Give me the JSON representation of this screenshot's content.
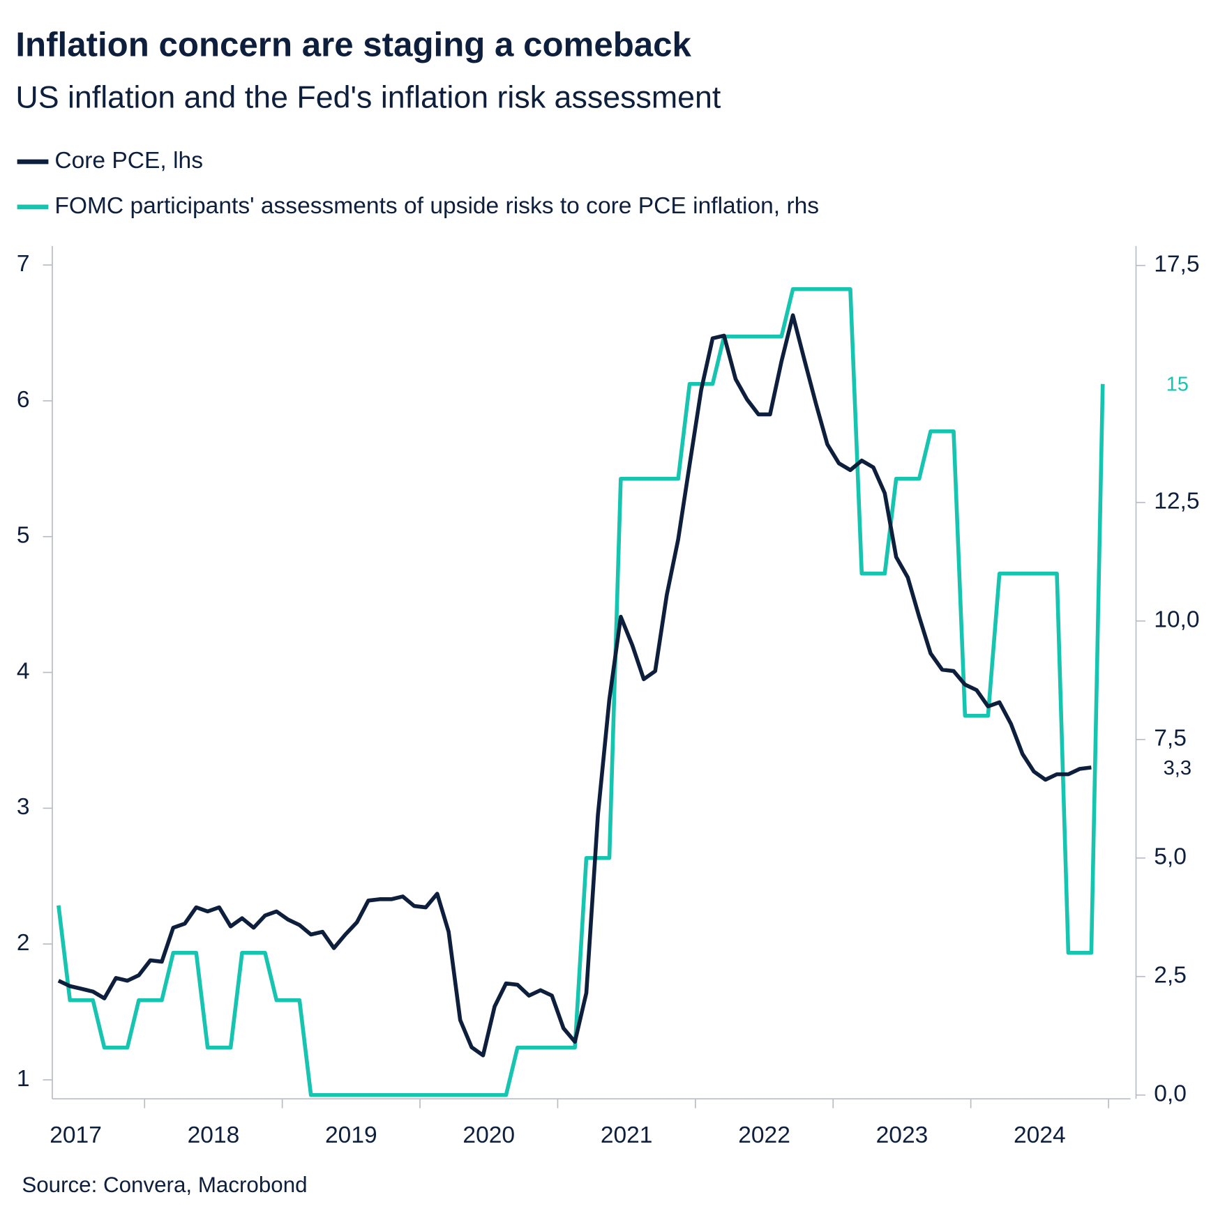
{
  "chart_data": {
    "type": "line",
    "title": "Inflation concern are staging a comeback",
    "subtitle": "US inflation and the Fed's inflation risk assessment",
    "source": "Source: Convera, Macrobond",
    "x": [
      2017.375,
      2017.458,
      2017.542,
      2017.625,
      2017.708,
      2017.792,
      2017.875,
      2017.958,
      2018.042,
      2018.125,
      2018.208,
      2018.292,
      2018.375,
      2018.458,
      2018.542,
      2018.625,
      2018.708,
      2018.792,
      2018.875,
      2018.958,
      2019.042,
      2019.125,
      2019.208,
      2019.292,
      2019.375,
      2019.458,
      2019.542,
      2019.625,
      2019.708,
      2019.792,
      2019.875,
      2019.958,
      2020.042,
      2020.125,
      2020.208,
      2020.292,
      2020.375,
      2020.458,
      2020.542,
      2020.625,
      2020.708,
      2020.792,
      2020.875,
      2020.958,
      2021.042,
      2021.125,
      2021.208,
      2021.292,
      2021.375,
      2021.458,
      2021.542,
      2021.625,
      2021.708,
      2021.792,
      2021.875,
      2021.958,
      2022.042,
      2022.125,
      2022.208,
      2022.292,
      2022.375,
      2022.458,
      2022.542,
      2022.625,
      2022.708,
      2022.792,
      2022.875,
      2022.958,
      2023.042,
      2023.125,
      2023.208,
      2023.292,
      2023.375,
      2023.458,
      2023.542,
      2023.625,
      2023.708,
      2023.792,
      2023.875,
      2023.958,
      2024.042,
      2024.125,
      2024.208,
      2024.292,
      2024.375,
      2024.458,
      2024.542,
      2024.625,
      2024.708,
      2024.792,
      2024.875,
      2024.958
    ],
    "xlim": [
      2017.33,
      2025.16
    ],
    "xticks": [
      2017,
      2018,
      2019,
      2020,
      2021,
      2022,
      2023,
      2024
    ],
    "ylim": [
      0.86,
      7.14
    ],
    "yticks": [
      1,
      2,
      3,
      4,
      5,
      6,
      7
    ],
    "y2lim": [
      -0.08,
      17.91
    ],
    "y2ticks": [
      {
        "value": 0,
        "label": "0,0"
      },
      {
        "value": 2.5,
        "label": "2,5"
      },
      {
        "value": 5,
        "label": "5,0"
      },
      {
        "value": 7.5,
        "label": "7,5"
      },
      {
        "value": 10,
        "label": "10,0"
      },
      {
        "value": 12.5,
        "label": "12,5"
      },
      {
        "value": 17.5,
        "label": "17,5"
      }
    ],
    "series": [
      {
        "name": "Core PCE, lhs",
        "color": "#0d1f3c",
        "values": [
          1.73,
          1.69,
          1.67,
          1.65,
          1.6,
          1.75,
          1.73,
          1.77,
          1.88,
          1.87,
          2.12,
          2.15,
          2.27,
          2.24,
          2.27,
          2.13,
          2.19,
          2.12,
          2.21,
          2.24,
          2.18,
          2.14,
          2.07,
          2.09,
          1.97,
          2.07,
          2.16,
          2.32,
          2.33,
          2.33,
          2.35,
          2.28,
          2.27,
          2.37,
          2.09,
          1.44,
          1.24,
          1.18,
          1.54,
          1.71,
          1.7,
          1.62,
          1.66,
          1.62,
          1.38,
          1.28,
          1.64,
          2.95,
          3.8,
          4.41,
          4.2,
          3.95,
          4.01,
          4.57,
          4.98,
          5.53,
          6.08,
          6.46,
          6.48,
          6.16,
          6.01,
          5.9,
          5.9,
          6.29,
          6.63,
          6.3,
          5.98,
          5.68,
          5.54,
          5.49,
          5.56,
          5.51,
          5.32,
          4.85,
          4.7,
          4.41,
          4.14,
          4.02,
          4.01,
          3.91,
          3.87,
          3.75,
          3.78,
          3.62,
          3.4,
          3.27,
          3.21,
          3.25,
          3.25,
          3.29,
          3.3,
          null
        ],
        "value_labels": [
          null,
          null,
          null,
          null,
          null,
          null,
          null,
          null,
          null,
          null,
          null,
          null,
          null,
          null,
          null,
          null,
          null,
          null,
          null,
          null,
          null,
          null,
          null,
          null,
          null,
          null,
          null,
          null,
          null,
          null,
          null,
          null,
          null,
          null,
          null,
          null,
          null,
          null,
          null,
          null,
          null,
          null,
          null,
          null,
          null,
          null,
          null,
          null,
          null,
          null,
          null,
          null,
          null,
          null,
          null,
          null,
          null,
          null,
          null,
          null,
          null,
          null,
          null,
          null,
          null,
          null,
          null,
          null,
          null,
          null,
          null,
          null,
          null,
          null,
          null,
          null,
          null,
          null,
          null,
          null,
          null,
          null,
          null,
          null,
          null,
          null,
          null,
          null,
          null,
          null,
          "3,3",
          null
        ]
      },
      {
        "name": "FOMC participants' assessments of upside risks to core PCE inflation, rhs",
        "color": "#16c4b0",
        "axis": "y2",
        "values": [
          4,
          2,
          2,
          2,
          1,
          1,
          1,
          2,
          2,
          2,
          3,
          3,
          3,
          1,
          1,
          1,
          3,
          3,
          3,
          2,
          2,
          2,
          0,
          0,
          0,
          0,
          0,
          0,
          0,
          0,
          0,
          0,
          0,
          0,
          0,
          0,
          0,
          0,
          0,
          0,
          1,
          1,
          1,
          1,
          1,
          1,
          5,
          5,
          5,
          13,
          13,
          13,
          13,
          13,
          13,
          15,
          15,
          15,
          16,
          16,
          16,
          16,
          16,
          16,
          17,
          17,
          17,
          17,
          17,
          17,
          11,
          11,
          11,
          13,
          13,
          13,
          14,
          14,
          14,
          8,
          8,
          8,
          11,
          11,
          11,
          11,
          11,
          11,
          3,
          3,
          3,
          15
        ],
        "value_labels": [
          null,
          null,
          null,
          null,
          null,
          null,
          null,
          null,
          null,
          null,
          null,
          null,
          null,
          null,
          null,
          null,
          null,
          null,
          null,
          null,
          null,
          null,
          null,
          null,
          null,
          null,
          null,
          null,
          null,
          null,
          null,
          null,
          null,
          null,
          null,
          null,
          null,
          null,
          null,
          null,
          null,
          null,
          null,
          null,
          null,
          null,
          null,
          null,
          null,
          null,
          null,
          null,
          null,
          null,
          null,
          null,
          null,
          null,
          null,
          null,
          null,
          null,
          null,
          null,
          null,
          null,
          null,
          null,
          null,
          null,
          null,
          null,
          null,
          null,
          null,
          null,
          null,
          null,
          null,
          null,
          null,
          null,
          null,
          null,
          null,
          null,
          null,
          null,
          null,
          null,
          null,
          "15"
        ]
      }
    ]
  }
}
